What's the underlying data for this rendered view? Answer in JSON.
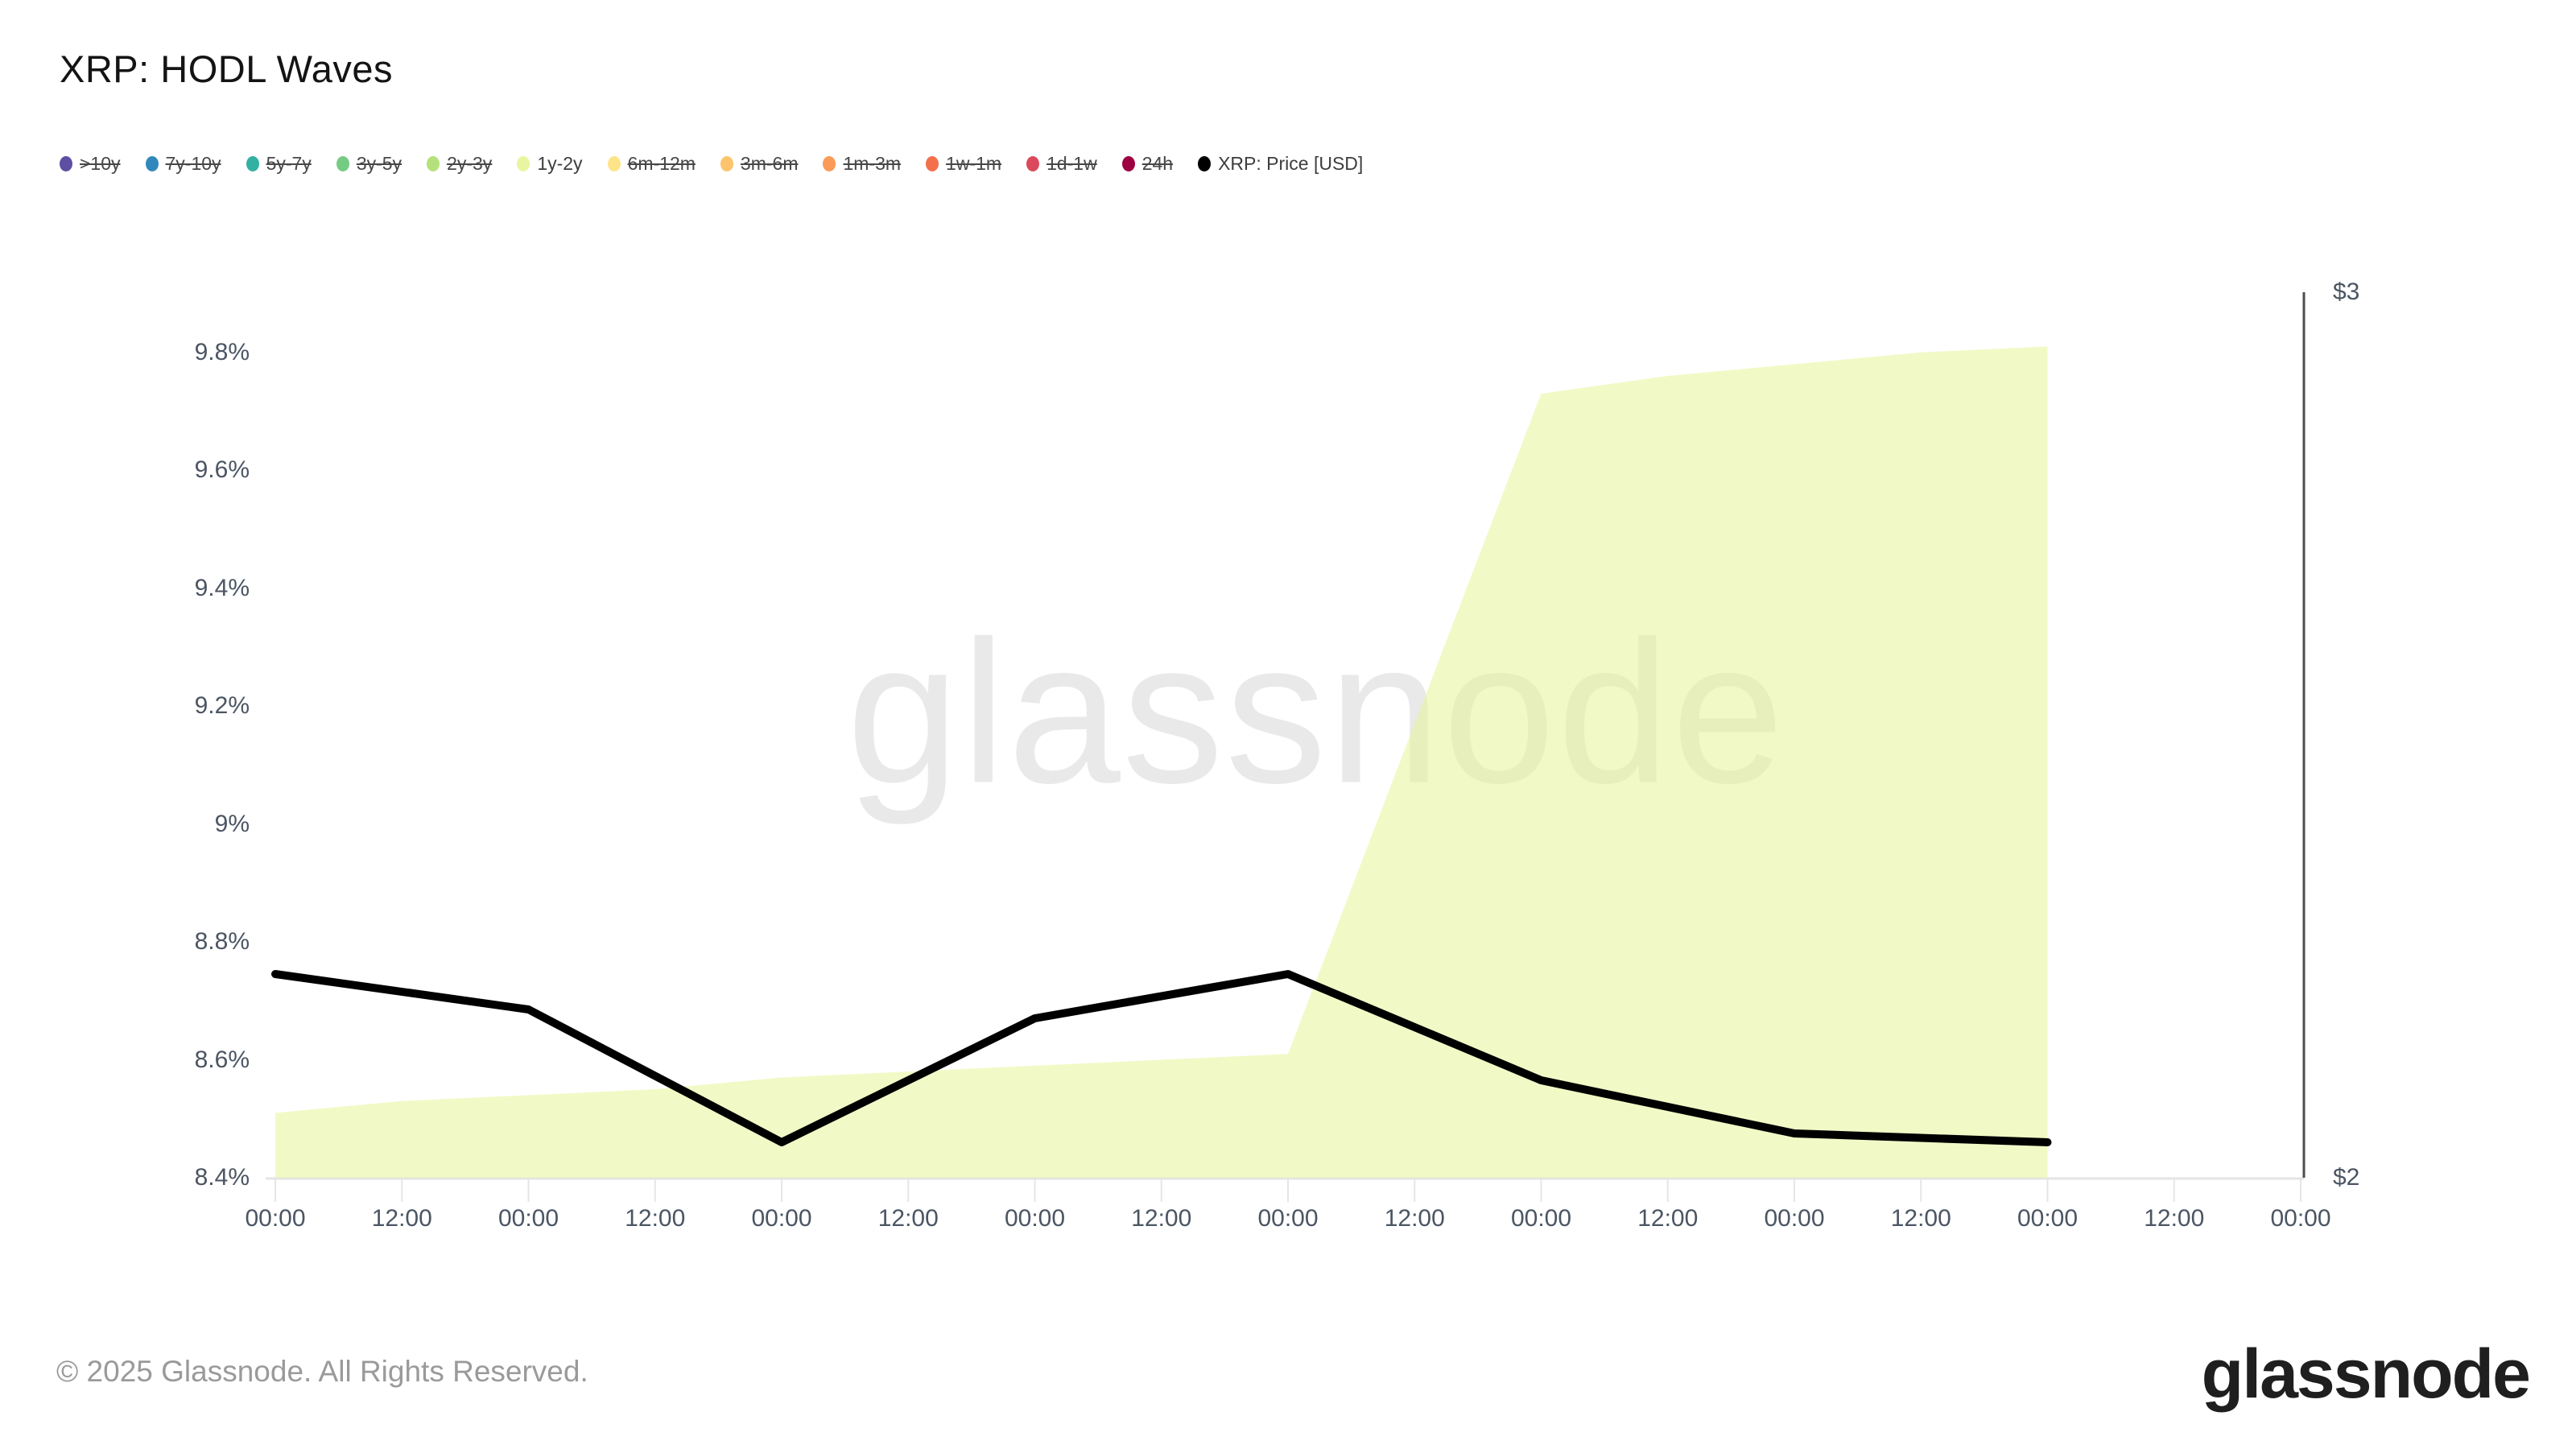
{
  "header": {
    "title": "XRP: HODL Waves"
  },
  "legend": {
    "items": [
      {
        "label": ">10y",
        "color": "#5e4fa2",
        "struck": true
      },
      {
        "label": "7y-10y",
        "color": "#3288bd",
        "struck": true
      },
      {
        "label": "5y-7y",
        "color": "#33b0a2",
        "struck": true
      },
      {
        "label": "3y-5y",
        "color": "#76cb84",
        "struck": true
      },
      {
        "label": "2y-3y",
        "color": "#b5e17c",
        "struck": true
      },
      {
        "label": "1y-2y",
        "color": "#e9f5a0",
        "struck": false
      },
      {
        "label": "6m-12m",
        "color": "#fee488",
        "struck": true
      },
      {
        "label": "3m-6m",
        "color": "#fdc46c",
        "struck": true
      },
      {
        "label": "1m-3m",
        "color": "#fa9b58",
        "struck": true
      },
      {
        "label": "1w-1m",
        "color": "#f4704c",
        "struck": true
      },
      {
        "label": "1d-1w",
        "color": "#da4a5c",
        "struck": true
      },
      {
        "label": "24h",
        "color": "#9e0142",
        "struck": true
      },
      {
        "label": "XRP: Price [USD]",
        "color": "#000000",
        "struck": false
      }
    ]
  },
  "watermark": "glassnode",
  "footer": {
    "copyright": "© 2025 Glassnode. All Rights Reserved.",
    "brand": "glassnode"
  },
  "chart_data": {
    "type": "area+line",
    "title": "XRP: HODL Waves",
    "grid": false,
    "x_tick_labels": [
      "00:00",
      "12:00",
      "00:00",
      "12:00",
      "00:00",
      "12:00",
      "00:00",
      "12:00",
      "00:00",
      "12:00",
      "00:00",
      "12:00",
      "00:00",
      "12:00",
      "00:00",
      "12:00",
      "00:00"
    ],
    "left_axis": {
      "unit": "%",
      "tick_labels": [
        "8.4%",
        "8.6%",
        "8.8%",
        "9%",
        "9.2%",
        "9.4%",
        "9.6%",
        "9.8%"
      ],
      "tick_values": [
        8.4,
        8.6,
        8.8,
        9.0,
        9.2,
        9.4,
        9.6,
        9.8
      ],
      "range": [
        8.4,
        9.902
      ]
    },
    "right_axis": {
      "unit": "USD",
      "tick_labels": [
        "$2",
        "$3"
      ],
      "tick_values": [
        2,
        3
      ],
      "range": [
        2,
        3
      ]
    },
    "series": [
      {
        "name": "1y-2y",
        "type": "area",
        "axis": "left",
        "color": "#e6f598",
        "fill_opacity": 0.55,
        "x_index": [
          0,
          1,
          2,
          3,
          4,
          5,
          6,
          7,
          8,
          9,
          10,
          11,
          12,
          13,
          14
        ],
        "values": [
          8.51,
          8.53,
          8.54,
          8.55,
          8.57,
          8.58,
          8.59,
          8.6,
          8.61,
          9.17,
          9.73,
          9.76,
          9.78,
          9.8,
          9.81
        ]
      },
      {
        "name": "XRP: Price [USD]",
        "type": "line",
        "axis": "right",
        "color": "#000000",
        "stroke_width": 10,
        "x_index": [
          0,
          2,
          4,
          6,
          8,
          10,
          12,
          14
        ],
        "values": [
          2.23,
          2.19,
          2.04,
          2.18,
          2.23,
          2.11,
          2.05,
          2.04
        ]
      }
    ]
  }
}
